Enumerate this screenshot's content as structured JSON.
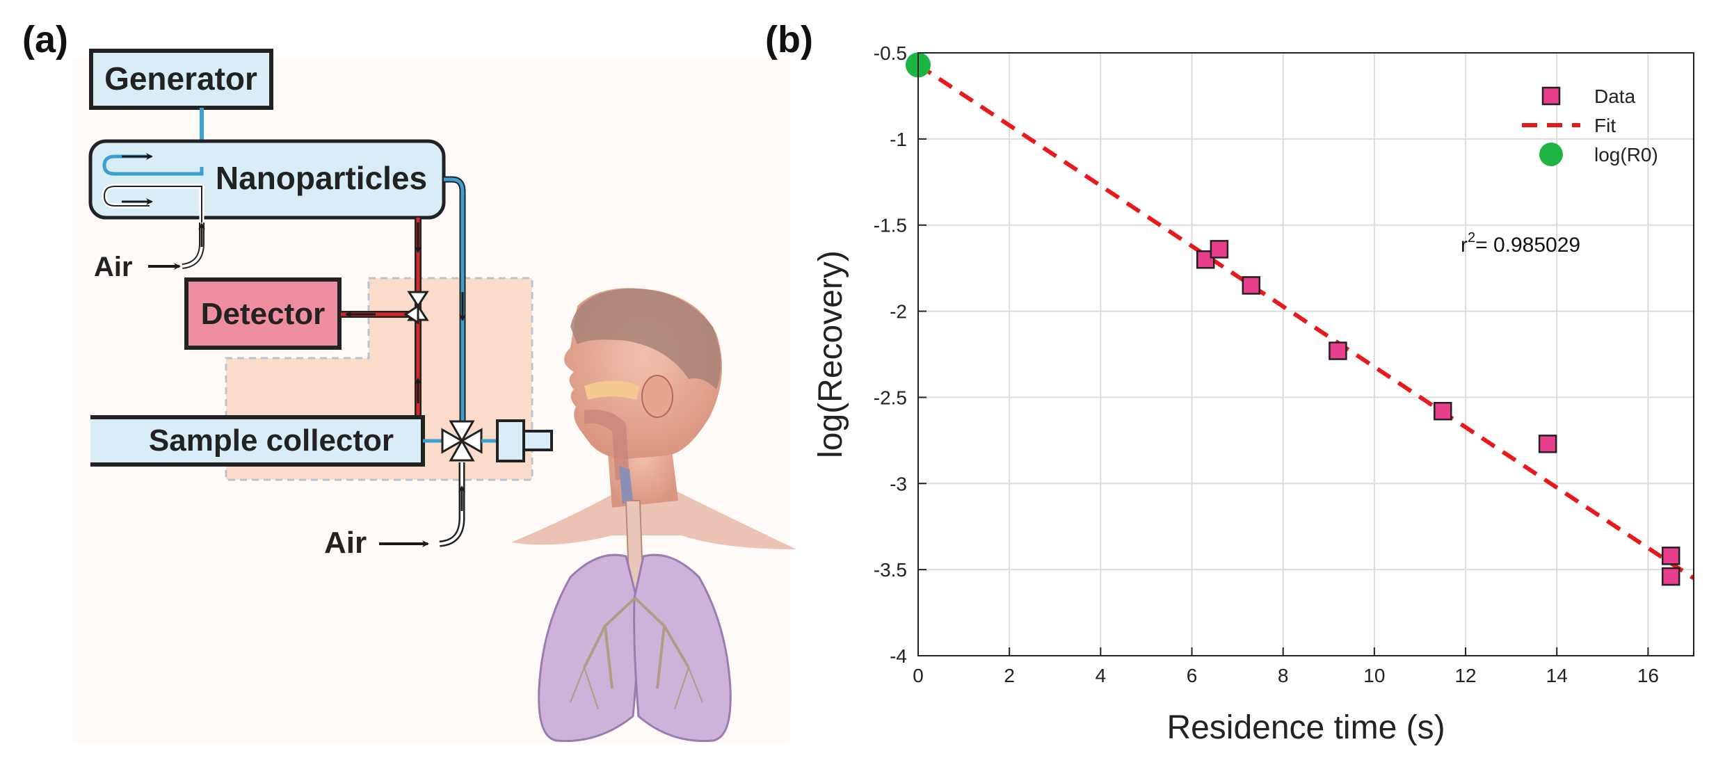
{
  "panel_a": {
    "label": "(a)",
    "boxes": {
      "generator": "Generator",
      "nanoparticles": "Nanoparticles",
      "detector": "Detector",
      "sample_collector": "Sample collector"
    },
    "air_label_top": "Air",
    "air_label_bottom": "Air",
    "colors": {
      "box_blue": "#d8edf6",
      "detector_pink": "#ef8ea0",
      "enclosure": "#fbdccb",
      "tube_blue": "#3d9ed0",
      "tube_red": "#d42a2a"
    }
  },
  "panel_b": {
    "label": "(b)"
  },
  "chart_data": {
    "type": "scatter",
    "xlabel": "Residence time (s)",
    "ylabel": "log(Recovery)",
    "xlim": [
      0,
      17
    ],
    "ylim": [
      -4,
      -0.5
    ],
    "xticks": [
      0,
      2,
      4,
      6,
      8,
      10,
      12,
      14,
      16
    ],
    "yticks": [
      -0.5,
      -1,
      -1.5,
      -2,
      -2.5,
      -3,
      -3.5,
      -4
    ],
    "xtick_labels": [
      "0",
      "2",
      "4",
      "6",
      "8",
      "10",
      "12",
      "14",
      "16"
    ],
    "ytick_labels": [
      "-0.5",
      "-1",
      "-1.5",
      "-2",
      "-2.5",
      "-3",
      "-3.5",
      "-4"
    ],
    "grid": true,
    "legend_position": "top-right",
    "series": [
      {
        "name": "Data",
        "marker": "square",
        "color": "#e83e8c",
        "x": [
          6.3,
          6.6,
          7.3,
          9.2,
          11.5,
          13.8,
          16.5,
          16.5
        ],
        "y": [
          -1.7,
          -1.64,
          -1.85,
          -2.23,
          -2.58,
          -2.77,
          -3.42,
          -3.54
        ]
      },
      {
        "name": "Fit",
        "style": "dashed",
        "color": "#e8191c",
        "x": [
          0,
          17
        ],
        "y": [
          -0.57,
          -3.55
        ]
      },
      {
        "name": "log(R0)",
        "marker": "circle",
        "color": "#1db543",
        "x": [
          0
        ],
        "y": [
          -0.57
        ]
      }
    ],
    "annotation": {
      "base": "r",
      "sup": "2",
      "text": "= 0.985029"
    }
  }
}
